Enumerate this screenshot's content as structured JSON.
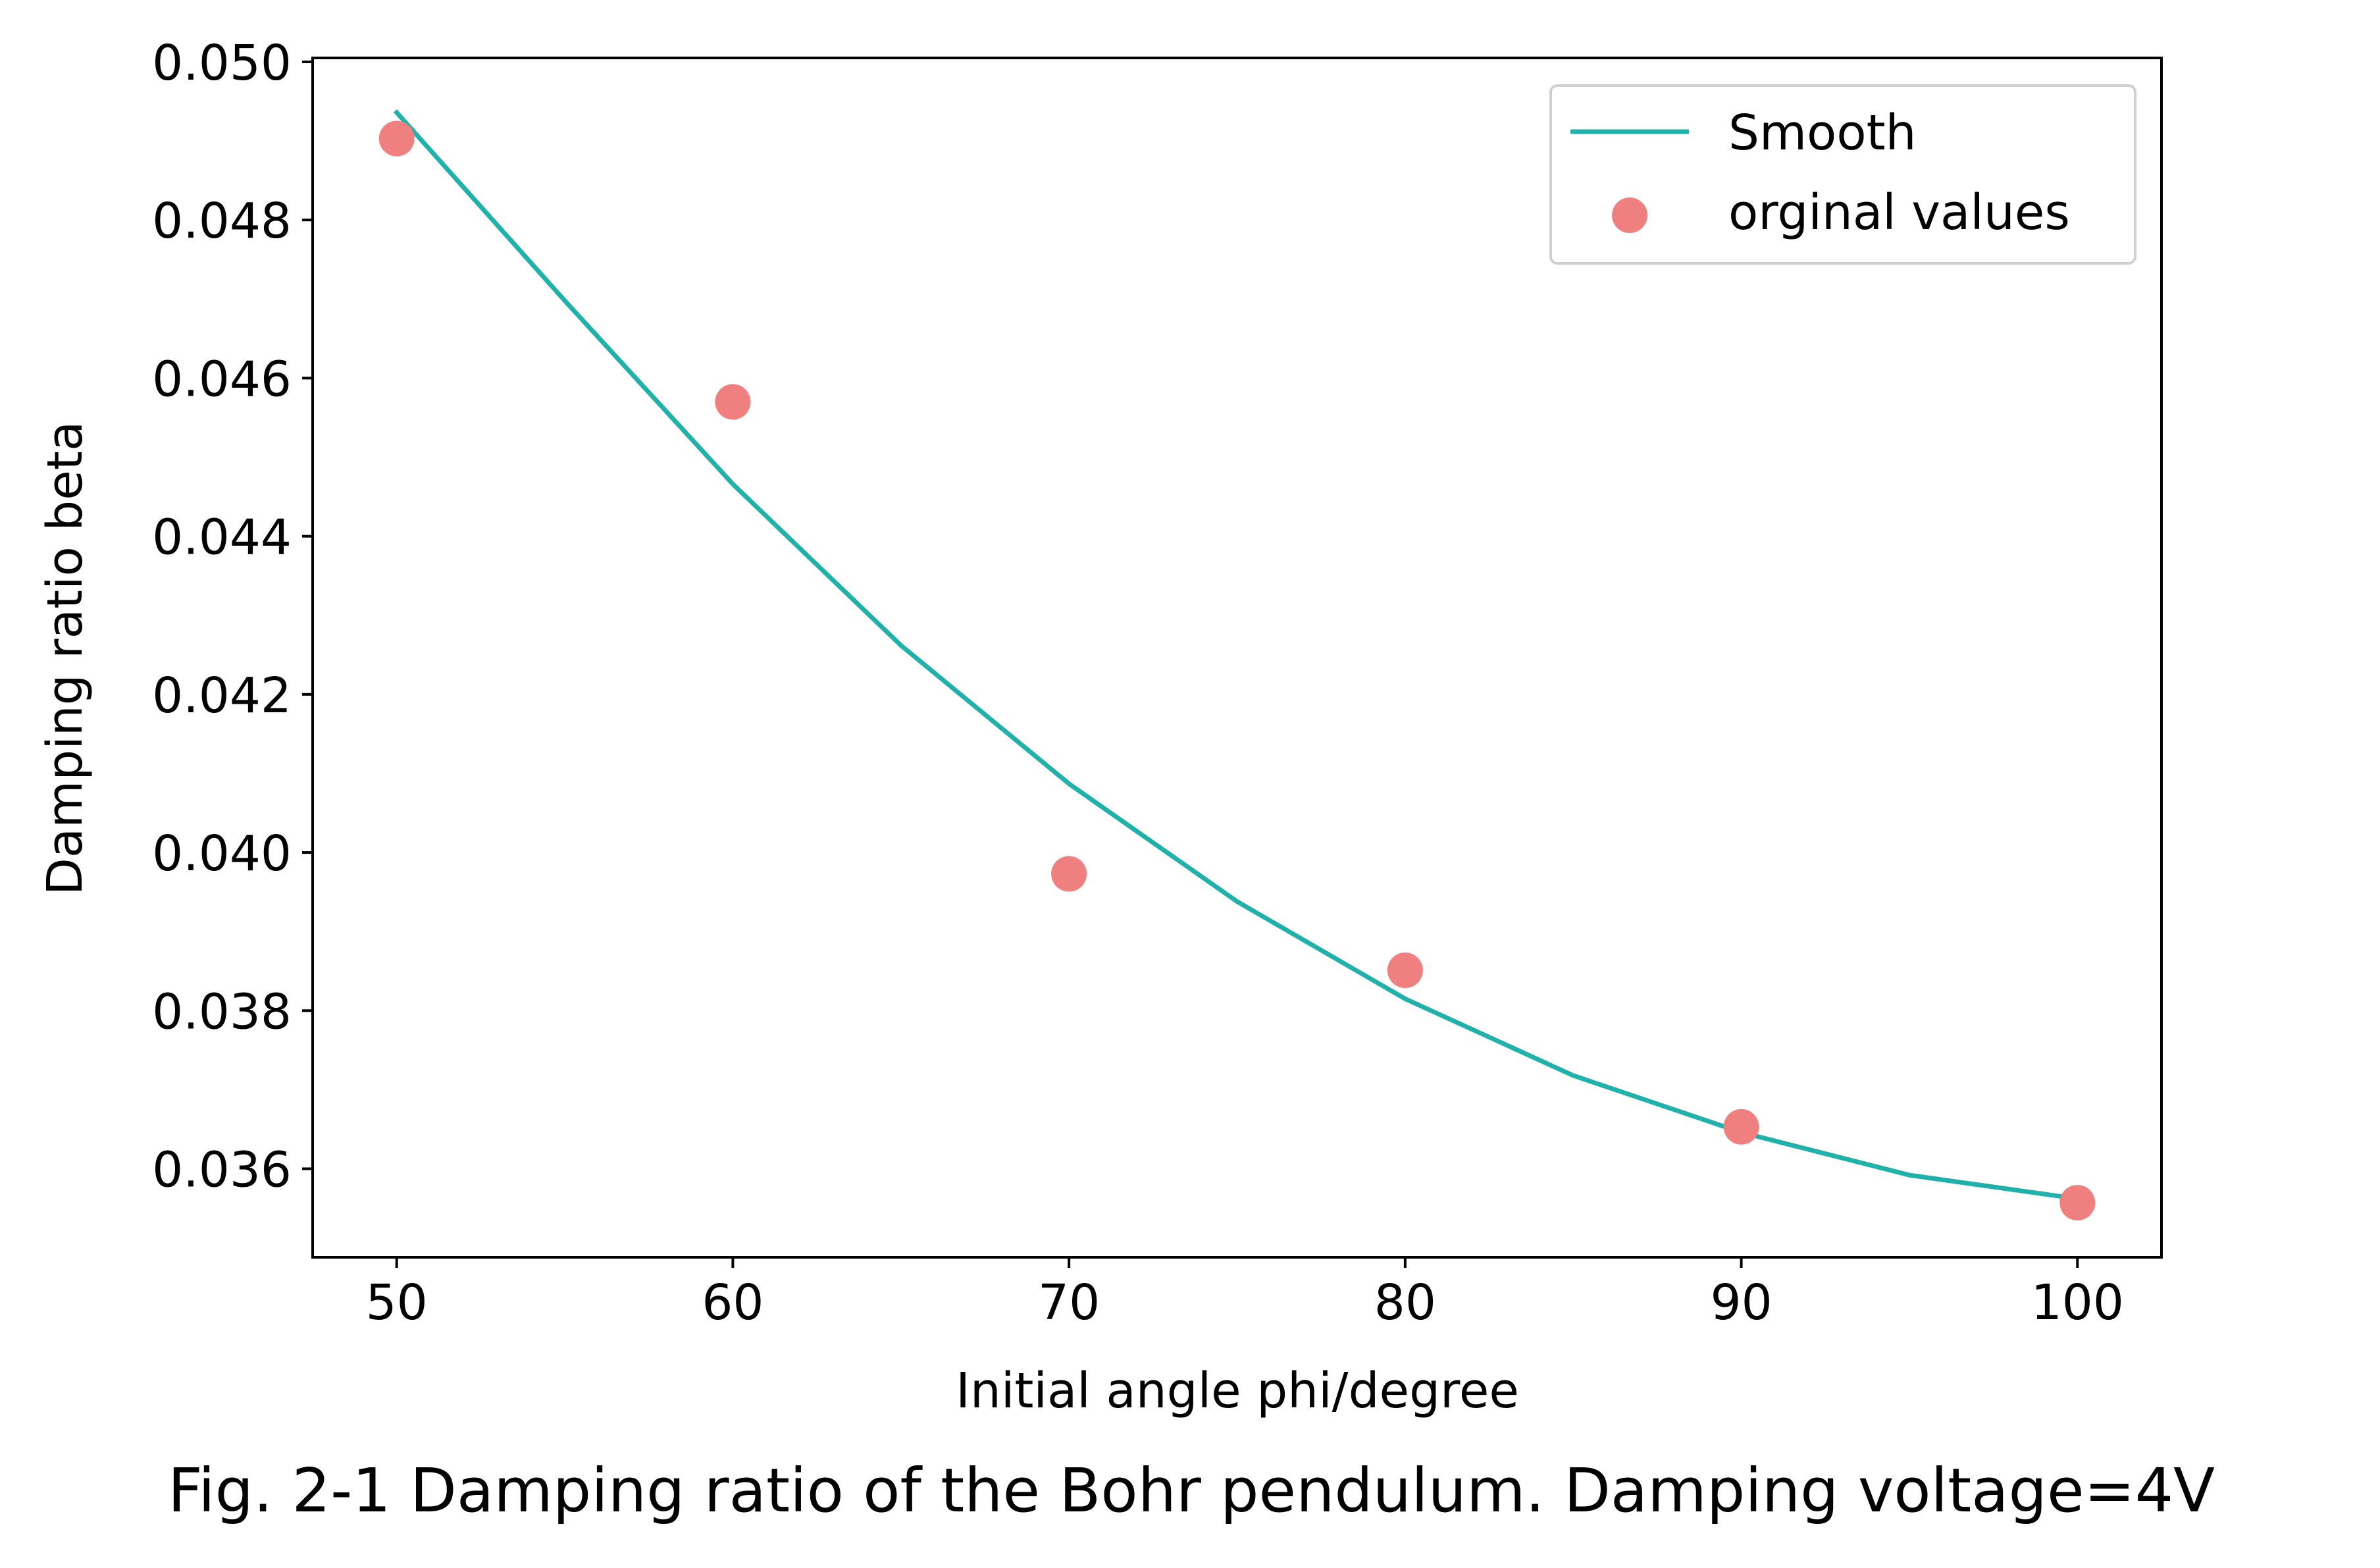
{
  "caption": "Fig. 2-1 Damping ratio of the Bohr pendulum. Damping voltage=4V",
  "chart_data": {
    "type": "scatter",
    "title": "",
    "xlabel": "Initial angle phi/degree",
    "ylabel": "Damping ratio beta",
    "xlim": [
      47.5,
      102.5
    ],
    "ylim": [
      0.03488,
      0.05005
    ],
    "xticks": [
      50,
      60,
      70,
      80,
      90,
      100
    ],
    "xtick_labels": [
      "50",
      "60",
      "70",
      "80",
      "90",
      "100"
    ],
    "yticks": [
      0.036,
      0.038,
      0.04,
      0.042,
      0.044,
      0.046,
      0.048,
      0.05
    ],
    "ytick_labels": [
      "0.036",
      "0.038",
      "0.040",
      "0.042",
      "0.044",
      "0.046",
      "0.048",
      "0.050"
    ],
    "grid": false,
    "legend_position": "top-right",
    "series": [
      {
        "name": "Smooth",
        "kind": "line",
        "color": "#20b2aa",
        "x": [
          50,
          55,
          60,
          65,
          70,
          75,
          80,
          85,
          90,
          95,
          100
        ],
        "y": [
          0.04936,
          0.04698,
          0.04466,
          0.04262,
          0.04087,
          0.03938,
          0.03815,
          0.03718,
          0.03646,
          0.03592,
          0.03562
        ]
      },
      {
        "name": "orginal values",
        "kind": "scatter",
        "color": "#f08080",
        "x": [
          50,
          60,
          70,
          80,
          90,
          100
        ],
        "y": [
          0.04903,
          0.0457,
          0.03973,
          0.03851,
          0.03653,
          0.03557
        ]
      }
    ]
  }
}
